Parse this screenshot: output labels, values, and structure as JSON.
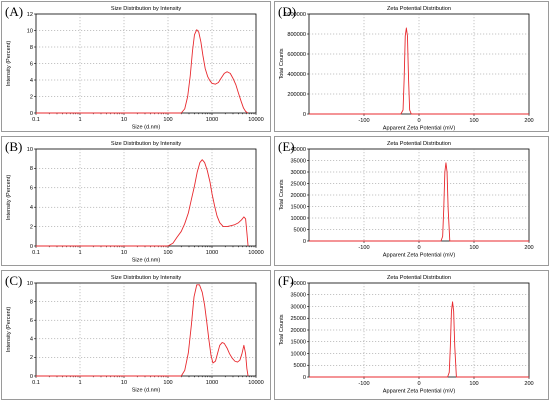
{
  "chart_data": [
    {
      "panel": "(A)",
      "type": "line",
      "title": "Size Distribution by Intensity",
      "xlabel": "Size (d.nm)",
      "ylabel": "Intensity (Percent)",
      "xscale": "log",
      "xlim": [
        0.1,
        10000
      ],
      "ylim": [
        0,
        12
      ],
      "xticks": [
        "0.1",
        "1",
        "10",
        "100",
        "1000",
        "10000"
      ],
      "yticks": [
        "0",
        "2",
        "4",
        "6",
        "8",
        "10",
        "12"
      ],
      "grid": true,
      "line_color": "#e8292e",
      "series": [
        {
          "x": [
            0.1,
            200,
            240,
            280,
            320,
            360,
            400,
            450,
            500,
            560,
            620,
            700,
            800,
            900,
            1000,
            1200,
            1400,
            1600,
            1900,
            2200,
            2600,
            3000,
            3500,
            4000,
            4600,
            5200,
            5800,
            6500
          ],
          "y": [
            0,
            0,
            0.5,
            2,
            4.5,
            7.5,
            9.5,
            10.1,
            9.8,
            8.6,
            7,
            5.4,
            4.4,
            3.9,
            3.6,
            3.5,
            3.7,
            4.2,
            4.8,
            5,
            4.8,
            4.2,
            3.4,
            2.4,
            1.4,
            0.6,
            0.2,
            0
          ]
        }
      ]
    },
    {
      "panel": "(B)",
      "type": "line",
      "title": "Size Distribution by Intensity",
      "xlabel": "Size (d.nm)",
      "ylabel": "Intensity (Percent)",
      "xscale": "log",
      "xlim": [
        0.1,
        10000
      ],
      "ylim": [
        0,
        10
      ],
      "xticks": [
        "0.1",
        "1",
        "10",
        "100",
        "1000",
        "10000"
      ],
      "yticks": [
        "0",
        "2",
        "4",
        "6",
        "8",
        "10"
      ],
      "grid": true,
      "line_color": "#e8292e",
      "series": [
        {
          "x": [
            0.1,
            100,
            130,
            160,
            200,
            240,
            290,
            340,
            400,
            460,
            530,
            600,
            680,
            780,
            900,
            1000,
            1150,
            1300,
            1500,
            1800,
            2200,
            2700,
            3300,
            4000,
            4700,
            5300,
            5800,
            6200,
            6600
          ],
          "y": [
            0,
            0,
            0.3,
            0.9,
            1.5,
            2.3,
            3.4,
            4.8,
            6.2,
            7.6,
            8.6,
            8.9,
            8.6,
            7.8,
            6.6,
            5.4,
            4.1,
            3.1,
            2.4,
            2,
            2,
            2.1,
            2.2,
            2.4,
            2.7,
            3,
            2.8,
            1.4,
            0
          ]
        }
      ]
    },
    {
      "panel": "(C)",
      "type": "line",
      "title": "Size Distribution by Intensity",
      "xlabel": "Size (d.nm)",
      "ylabel": "Intensity (Percent)",
      "xscale": "log",
      "xlim": [
        0.1,
        10000
      ],
      "ylim": [
        0,
        10
      ],
      "xticks": [
        "0.1",
        "1",
        "10",
        "100",
        "1000",
        "10000"
      ],
      "yticks": [
        "0",
        "2",
        "4",
        "6",
        "8",
        "10"
      ],
      "grid": true,
      "line_color": "#e8292e",
      "series": [
        {
          "x": [
            0.1,
            200,
            240,
            290,
            340,
            390,
            450,
            520,
            600,
            680,
            760,
            850,
            950,
            1050,
            1200,
            1350,
            1500,
            1700,
            1900,
            2200,
            2500,
            2900,
            3300,
            3800,
            4300,
            4800,
            5300,
            5800,
            6200,
            6600
          ],
          "y": [
            0,
            0,
            0.6,
            2.5,
            5.5,
            8.5,
            9.8,
            9.8,
            9,
            7.6,
            5.8,
            3.9,
            2.2,
            1.4,
            1.6,
            2.5,
            3.3,
            3.6,
            3.5,
            3,
            2.4,
            1.9,
            1.6,
            1.5,
            1.7,
            2.4,
            3.3,
            2.4,
            0.8,
            0
          ]
        }
      ]
    },
    {
      "panel": "(D)",
      "type": "line",
      "title": "Zeta Potential Distribution",
      "xlabel": "Apparent Zeta Potential (mV)",
      "ylabel": "Total Counts",
      "xlim": [
        -200,
        200
      ],
      "ylim": [
        0,
        1000000
      ],
      "xticks": [
        "-100",
        "0",
        "100",
        "200"
      ],
      "yticks": [
        "0",
        "200000",
        "400000",
        "600000",
        "800000",
        "1000000"
      ],
      "grid": true,
      "line_color": "#e8292e",
      "series": [
        {
          "x": [
            -200,
            -33,
            -29,
            -27,
            -25,
            -23,
            -21,
            -19,
            -17,
            -14,
            200
          ],
          "y": [
            0,
            0,
            40000,
            350000,
            780000,
            860000,
            780000,
            350000,
            40000,
            0,
            0
          ]
        }
      ]
    },
    {
      "panel": "(E)",
      "type": "line",
      "title": "Zeta Potential Distribution",
      "xlabel": "Apparent Zeta Potential (mV)",
      "ylabel": "Total Counts",
      "xlim": [
        -200,
        200
      ],
      "ylim": [
        0,
        40000
      ],
      "xticks": [
        "-100",
        "0",
        "100",
        "200"
      ],
      "yticks": [
        "0",
        "5000",
        "10000",
        "15000",
        "20000",
        "25000",
        "30000",
        "35000",
        "40000"
      ],
      "grid": true,
      "line_color": "#e8292e",
      "series": [
        {
          "x": [
            -200,
            40,
            43,
            45,
            47,
            49,
            51,
            53,
            56,
            200
          ],
          "y": [
            0,
            0,
            2000,
            14000,
            30000,
            34000,
            30000,
            14000,
            0,
            0
          ]
        }
      ]
    },
    {
      "panel": "(F)",
      "type": "line",
      "title": "Zeta Potential Distribution",
      "xlabel": "Apparent Zeta Potential (mV)",
      "ylabel": "Total Counts",
      "xlim": [
        -200,
        200
      ],
      "ylim": [
        0,
        40000
      ],
      "xticks": [
        "-100",
        "0",
        "100",
        "200"
      ],
      "yticks": [
        "0",
        "5000",
        "10000",
        "15000",
        "20000",
        "25000",
        "30000",
        "35000",
        "40000"
      ],
      "grid": true,
      "line_color": "#e8292e",
      "series": [
        {
          "x": [
            -200,
            52,
            55,
            57,
            59,
            61,
            63,
            65,
            68,
            200
          ],
          "y": [
            0,
            0,
            2000,
            13000,
            28000,
            32000,
            28000,
            13000,
            0,
            0
          ]
        }
      ]
    }
  ]
}
